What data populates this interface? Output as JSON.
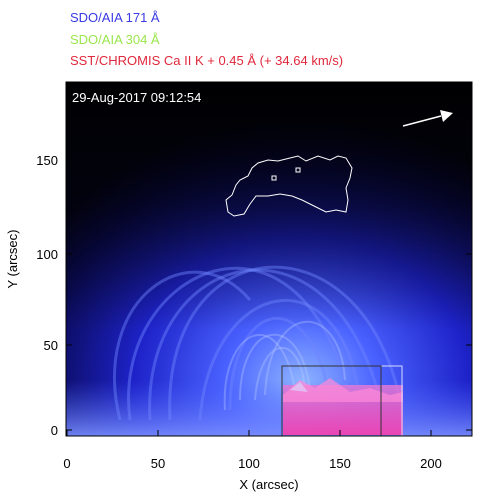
{
  "legend": [
    {
      "text": "SDO/AIA 171 Å",
      "color": "#3a3ae6"
    },
    {
      "text": "SDO/AIA 304 Å",
      "color": "#9ae64a"
    },
    {
      "text": "SST/CHROMIS Ca II K + 0.45 Å (+ 34.64 km/s)",
      "color": "#e0283c"
    }
  ],
  "timestamp": "29-Aug-2017 09:12:54",
  "xaxis": {
    "label": "X (arcsec)",
    "ticks": [
      "0",
      "50",
      "100",
      "150",
      "200"
    ]
  },
  "yaxis": {
    "label": "Y (arcsec)",
    "ticks": [
      "0",
      "50",
      "100",
      "150"
    ]
  },
  "image": {
    "description_icon": "solar-loops-image",
    "arrow_icon": "direction-arrow-icon"
  }
}
